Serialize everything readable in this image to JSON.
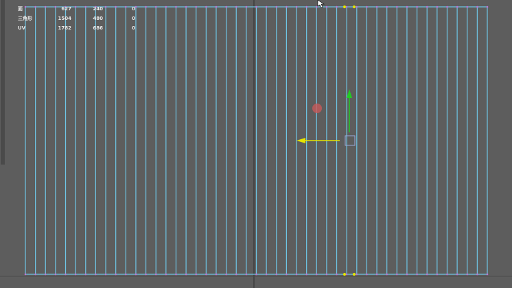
{
  "hud": {
    "rows": [
      {
        "label": "面",
        "values": [
          "627",
          "240",
          "0"
        ]
      },
      {
        "label": "三角形",
        "values": [
          "1504",
          "480",
          "0"
        ]
      },
      {
        "label": "UV",
        "values": [
          "1782",
          "686",
          "0"
        ]
      }
    ]
  }
}
